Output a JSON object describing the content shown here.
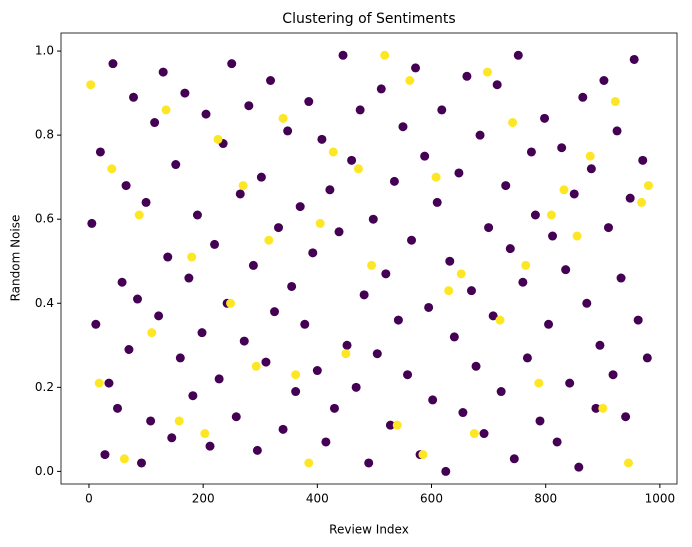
{
  "chart_data": {
    "type": "scatter",
    "title": "Clustering of Sentiments",
    "x_label": "Review Index",
    "y_label": "Random Noise",
    "xlim": [
      -49,
      1030
    ],
    "ylim": [
      -0.03,
      1.043
    ],
    "xticks": [
      0,
      200,
      400,
      600,
      800,
      1000
    ],
    "yticks": [
      {
        "value": 0,
        "label": "0.0"
      },
      0.2,
      0.4,
      0.6,
      0.8,
      {
        "value": 1,
        "label": "1.0"
      }
    ],
    "grid": false,
    "series": [
      {
        "color": "#440154",
        "x": [
          5,
          12,
          20,
          28,
          35,
          42,
          50,
          58,
          65,
          70,
          78,
          85,
          92,
          100,
          108,
          115,
          122,
          130,
          138,
          145,
          152,
          160,
          168,
          175,
          182,
          190,
          198,
          205,
          212,
          220,
          228,
          235,
          242,
          250,
          258,
          265,
          272,
          280,
          288,
          295,
          302,
          310,
          318,
          325,
          332,
          340,
          348,
          355,
          362,
          370,
          378,
          385,
          392,
          400,
          408,
          415,
          422,
          430,
          438,
          445,
          452,
          460,
          468,
          475,
          482,
          490,
          498,
          505,
          512,
          520,
          528,
          535,
          542,
          550,
          558,
          565,
          572,
          580,
          588,
          595,
          602,
          610,
          618,
          625,
          632,
          640,
          648,
          655,
          662,
          670,
          678,
          685,
          692,
          700,
          708,
          715,
          722,
          730,
          738,
          745,
          752,
          760,
          768,
          775,
          782,
          790,
          798,
          805,
          812,
          820,
          828,
          835,
          842,
          850,
          858,
          865,
          872,
          880,
          888,
          895,
          902,
          910,
          918,
          925,
          932,
          940,
          948,
          955,
          962,
          970,
          978
        ],
        "y": [
          0.59,
          0.35,
          0.76,
          0.04,
          0.21,
          0.97,
          0.15,
          0.45,
          0.68,
          0.29,
          0.89,
          0.41,
          0.02,
          0.64,
          0.12,
          0.83,
          0.37,
          0.95,
          0.51,
          0.08,
          0.73,
          0.27,
          0.9,
          0.46,
          0.18,
          0.61,
          0.33,
          0.85,
          0.06,
          0.54,
          0.22,
          0.78,
          0.4,
          0.97,
          0.13,
          0.66,
          0.31,
          0.87,
          0.49,
          0.05,
          0.7,
          0.26,
          0.93,
          0.38,
          0.58,
          0.1,
          0.81,
          0.44,
          0.19,
          0.63,
          0.35,
          0.88,
          0.52,
          0.24,
          0.79,
          0.07,
          0.67,
          0.15,
          0.57,
          0.99,
          0.3,
          0.74,
          0.2,
          0.86,
          0.42,
          0.02,
          0.6,
          0.28,
          0.91,
          0.47,
          0.11,
          0.69,
          0.36,
          0.82,
          0.23,
          0.55,
          0.96,
          0.04,
          0.75,
          0.39,
          0.17,
          0.64,
          0.86,
          0.0,
          0.5,
          0.32,
          0.71,
          0.14,
          0.94,
          0.43,
          0.25,
          0.8,
          0.09,
          0.58,
          0.37,
          0.92,
          0.19,
          0.68,
          0.53,
          0.03,
          0.99,
          0.45,
          0.27,
          0.76,
          0.61,
          0.12,
          0.84,
          0.35,
          0.56,
          0.07,
          0.77,
          0.48,
          0.21,
          0.66,
          0.01,
          0.89,
          0.4,
          0.72,
          0.15,
          0.3,
          0.93,
          0.58,
          0.23,
          0.81,
          0.46,
          0.13,
          0.65,
          0.98,
          0.36,
          0.74,
          0.27
        ]
      },
      {
        "color": "#fde725",
        "x": [
          3,
          18,
          40,
          62,
          88,
          110,
          135,
          158,
          180,
          203,
          226,
          248,
          270,
          293,
          315,
          340,
          362,
          385,
          405,
          428,
          450,
          472,
          495,
          518,
          540,
          562,
          585,
          608,
          630,
          652,
          675,
          698,
          720,
          742,
          765,
          788,
          810,
          832,
          855,
          878,
          900,
          922,
          945,
          968,
          980
        ],
        "y": [
          0.92,
          0.21,
          0.72,
          0.03,
          0.61,
          0.33,
          0.86,
          0.12,
          0.51,
          0.09,
          0.79,
          0.4,
          0.68,
          0.25,
          0.55,
          0.84,
          0.23,
          0.02,
          0.59,
          0.76,
          0.28,
          0.72,
          0.49,
          0.99,
          0.11,
          0.93,
          0.04,
          0.7,
          0.43,
          0.47,
          0.09,
          0.95,
          0.36,
          0.83,
          0.49,
          0.21,
          0.61,
          0.67,
          0.56,
          0.75,
          0.15,
          0.88,
          0.02,
          0.64,
          0.68
        ]
      }
    ]
  }
}
